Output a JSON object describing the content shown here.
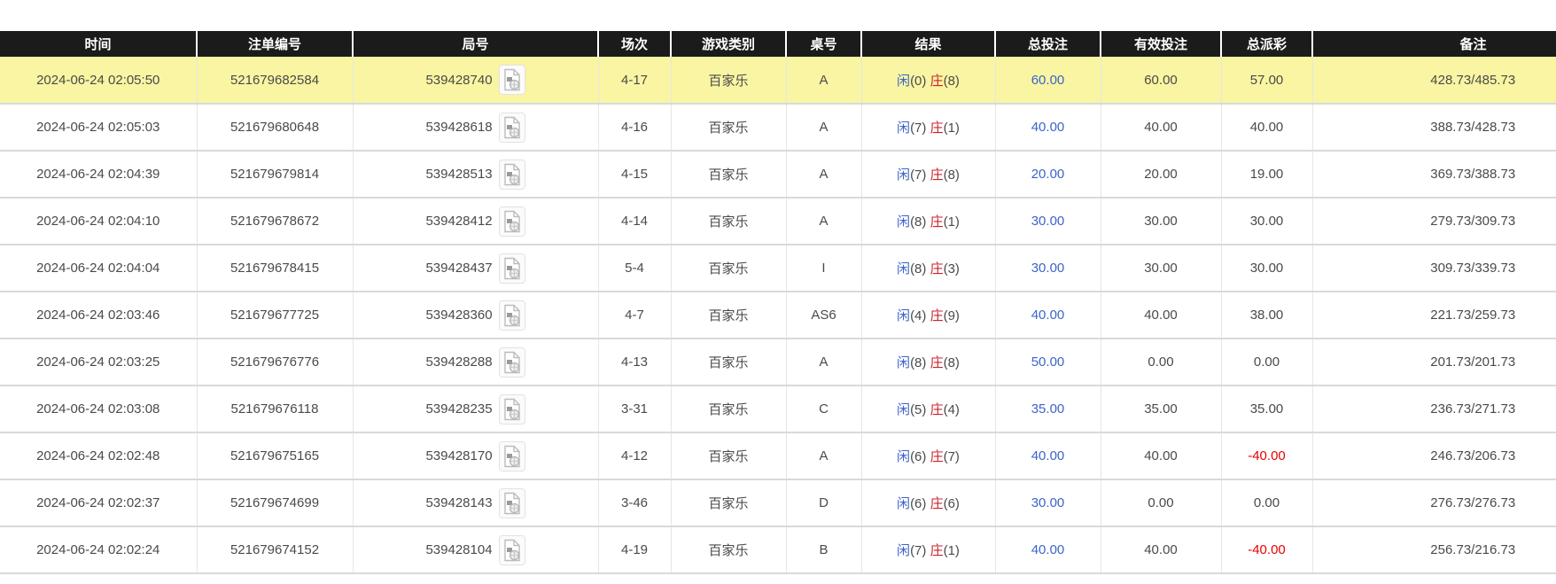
{
  "colors": {
    "header_bg": "#1b1b1b",
    "highlight": "#f9f5a2",
    "link_blue": "#3c64c8",
    "player_blue": "#3c64c8",
    "banker_red": "#cc2229",
    "negative_red": "#e80000"
  },
  "table": {
    "result_labels": {
      "player": "闲",
      "banker": "庄"
    },
    "icon": "video-replay-icon",
    "columns": [
      {
        "key": "time",
        "label": "时间"
      },
      {
        "key": "order_no",
        "label": "注单编号"
      },
      {
        "key": "round_no",
        "label": "局号"
      },
      {
        "key": "session",
        "label": "场次"
      },
      {
        "key": "game_type",
        "label": "游戏类别"
      },
      {
        "key": "table_no",
        "label": "桌号"
      },
      {
        "key": "result",
        "label": "结果"
      },
      {
        "key": "total_bet",
        "label": "总投注"
      },
      {
        "key": "valid_bet",
        "label": "有效投注"
      },
      {
        "key": "payout",
        "label": "总派彩"
      },
      {
        "key": "remark",
        "label": "备注"
      }
    ],
    "rows": [
      {
        "highlighted": true,
        "time": "2024-06-24 02:05:50",
        "order_no": "521679682584",
        "round_no": "539428740",
        "session": "4-17",
        "game_type": "百家乐",
        "table_no": "A",
        "result_player": "(0)",
        "result_banker": "(8)",
        "total_bet": "60.00",
        "valid_bet": "60.00",
        "payout": "57.00",
        "remark": "428.73/485.73"
      },
      {
        "highlighted": false,
        "time": "2024-06-24 02:05:03",
        "order_no": "521679680648",
        "round_no": "539428618",
        "session": "4-16",
        "game_type": "百家乐",
        "table_no": "A",
        "result_player": "(7)",
        "result_banker": "(1)",
        "total_bet": "40.00",
        "valid_bet": "40.00",
        "payout": "40.00",
        "remark": "388.73/428.73"
      },
      {
        "highlighted": false,
        "time": "2024-06-24 02:04:39",
        "order_no": "521679679814",
        "round_no": "539428513",
        "session": "4-15",
        "game_type": "百家乐",
        "table_no": "A",
        "result_player": "(7)",
        "result_banker": "(8)",
        "total_bet": "20.00",
        "valid_bet": "20.00",
        "payout": "19.00",
        "remark": "369.73/388.73"
      },
      {
        "highlighted": false,
        "time": "2024-06-24 02:04:10",
        "order_no": "521679678672",
        "round_no": "539428412",
        "session": "4-14",
        "game_type": "百家乐",
        "table_no": "A",
        "result_player": "(8)",
        "result_banker": "(1)",
        "total_bet": "30.00",
        "valid_bet": "30.00",
        "payout": "30.00",
        "remark": "279.73/309.73"
      },
      {
        "highlighted": false,
        "time": "2024-06-24 02:04:04",
        "order_no": "521679678415",
        "round_no": "539428437",
        "session": "5-4",
        "game_type": "百家乐",
        "table_no": "I",
        "result_player": "(8)",
        "result_banker": "(3)",
        "total_bet": "30.00",
        "valid_bet": "30.00",
        "payout": "30.00",
        "remark": "309.73/339.73"
      },
      {
        "highlighted": false,
        "time": "2024-06-24 02:03:46",
        "order_no": "521679677725",
        "round_no": "539428360",
        "session": "4-7",
        "game_type": "百家乐",
        "table_no": "AS6",
        "result_player": "(4)",
        "result_banker": "(9)",
        "total_bet": "40.00",
        "valid_bet": "40.00",
        "payout": "38.00",
        "remark": "221.73/259.73"
      },
      {
        "highlighted": false,
        "time": "2024-06-24 02:03:25",
        "order_no": "521679676776",
        "round_no": "539428288",
        "session": "4-13",
        "game_type": "百家乐",
        "table_no": "A",
        "result_player": "(8)",
        "result_banker": "(8)",
        "total_bet": "50.00",
        "valid_bet": "0.00",
        "payout": "0.00",
        "remark": "201.73/201.73"
      },
      {
        "highlighted": false,
        "time": "2024-06-24 02:03:08",
        "order_no": "521679676118",
        "round_no": "539428235",
        "session": "3-31",
        "game_type": "百家乐",
        "table_no": "C",
        "result_player": "(5)",
        "result_banker": "(4)",
        "total_bet": "35.00",
        "valid_bet": "35.00",
        "payout": "35.00",
        "remark": "236.73/271.73"
      },
      {
        "highlighted": false,
        "time": "2024-06-24 02:02:48",
        "order_no": "521679675165",
        "round_no": "539428170",
        "session": "4-12",
        "game_type": "百家乐",
        "table_no": "A",
        "result_player": "(6)",
        "result_banker": "(7)",
        "total_bet": "40.00",
        "valid_bet": "40.00",
        "payout": "-40.00",
        "remark": "246.73/206.73"
      },
      {
        "highlighted": false,
        "time": "2024-06-24 02:02:37",
        "order_no": "521679674699",
        "round_no": "539428143",
        "session": "3-46",
        "game_type": "百家乐",
        "table_no": "D",
        "result_player": "(6)",
        "result_banker": "(6)",
        "total_bet": "30.00",
        "valid_bet": "0.00",
        "payout": "0.00",
        "remark": "276.73/276.73"
      },
      {
        "highlighted": false,
        "time": "2024-06-24 02:02:24",
        "order_no": "521679674152",
        "round_no": "539428104",
        "session": "4-19",
        "game_type": "百家乐",
        "table_no": "B",
        "result_player": "(7)",
        "result_banker": "(1)",
        "total_bet": "40.00",
        "valid_bet": "40.00",
        "payout": "-40.00",
        "remark": "256.73/216.73"
      }
    ]
  }
}
